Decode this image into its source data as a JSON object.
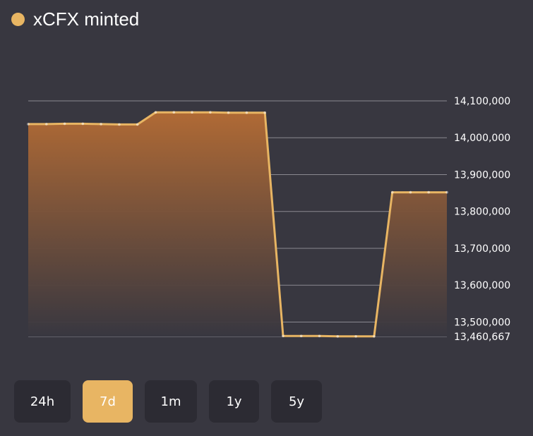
{
  "header": {
    "title": "xCFX minted",
    "dot_color": "#e8b563"
  },
  "range": {
    "buttons": [
      "24h",
      "7d",
      "1m",
      "1y",
      "5y"
    ],
    "selected": "7d"
  },
  "colors": {
    "accent": "#e8b563",
    "area_top": "#b06a35",
    "area_bottom": "#383740",
    "grid": "#8a8990",
    "background": "#383740",
    "button_bg": "#2c2b33"
  },
  "chart_data": {
    "type": "area",
    "title": "xCFX minted",
    "xlabel": "",
    "ylabel": "",
    "ylim": [
      13460667,
      14100000
    ],
    "grid": true,
    "y_axis_position": "right",
    "y_ticks": [
      "14,100,000",
      "14,000,000",
      "13,900,000",
      "13,800,000",
      "13,700,000",
      "13,600,000",
      "13,500,000",
      "13,460,667"
    ],
    "y_tick_values": [
      14100000,
      14000000,
      13900000,
      13800000,
      13700000,
      13600000,
      13500000,
      13460667
    ],
    "series": [
      {
        "values": [
          14037000,
          14037000,
          14038000,
          14038000,
          14037000,
          14036000,
          14036000,
          14069000,
          14069000,
          14069000,
          14069000,
          14068000,
          14068000,
          14068000,
          13462000,
          13462000,
          13462000,
          13461000,
          13461000,
          13461000,
          13852000,
          13852000,
          13852000,
          13852000
        ]
      }
    ]
  }
}
